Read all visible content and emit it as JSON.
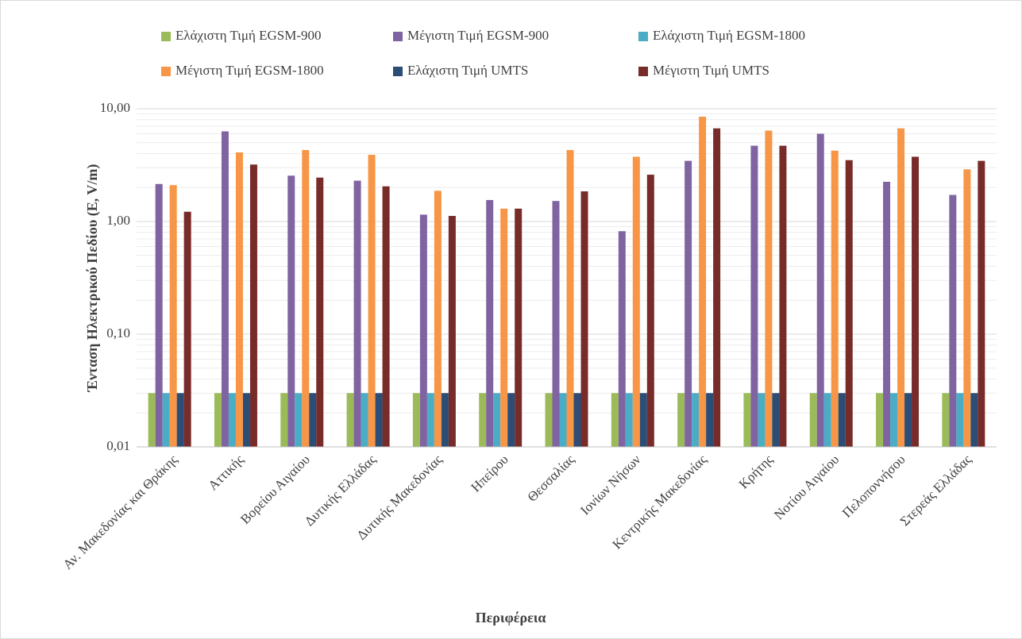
{
  "chart_data": {
    "type": "bar",
    "log_scale": true,
    "grid": true,
    "minor_grid": true,
    "x_label": "Περιφέρεια",
    "y_label": "Ένταση Ηλεκτρικού Πεδίου (E, V/m)",
    "categories": [
      "Αν. Μακεδονίας και Θράκης",
      "Αττικής",
      "Βορείου Αιγαίου",
      "Δυτικής Ελλάδας",
      "Δυτικής Μακεδονίας",
      "Ηπείρου",
      "Θεσσαλίας",
      "Ιονίων Νήσων",
      "Κεντρικής Μακεδονίας",
      "Κρήτης",
      "Νοτίου Αιγαίου",
      "Πελοποννήσου",
      "Στερεάς Ελλάδας"
    ],
    "series": [
      {
        "name": "Ελάχιστη Τιμή EGSM-900",
        "color": "#9bbb59",
        "values": [
          0.03,
          0.03,
          0.03,
          0.03,
          0.03,
          0.03,
          0.03,
          0.03,
          0.03,
          0.03,
          0.03,
          0.03,
          0.03
        ]
      },
      {
        "name": "Μέγιστη Τιμή EGSM-900",
        "color": "#8064a2",
        "values": [
          2.15,
          6.3,
          2.55,
          2.3,
          1.15,
          1.55,
          1.52,
          0.82,
          3.45,
          4.7,
          6.0,
          2.25,
          1.72
        ]
      },
      {
        "name": "Ελάχιστη Τιμή EGSM-1800",
        "color": "#4bacc6",
        "values": [
          0.03,
          0.03,
          0.03,
          0.03,
          0.03,
          0.03,
          0.03,
          0.03,
          0.03,
          0.03,
          0.03,
          0.03,
          0.03
        ]
      },
      {
        "name": "Μέγιστη Τιμή EGSM-1800",
        "color": "#f79646",
        "values": [
          2.1,
          4.1,
          4.3,
          3.9,
          1.87,
          1.3,
          4.3,
          3.75,
          8.5,
          6.4,
          4.25,
          6.7,
          2.9
        ]
      },
      {
        "name": "Ελάχιστη Τιμή UMTS",
        "color": "#2c4d75",
        "values": [
          0.03,
          0.03,
          0.03,
          0.03,
          0.03,
          0.03,
          0.03,
          0.03,
          0.03,
          0.03,
          0.03,
          0.03,
          0.03
        ]
      },
      {
        "name": "Μέγιστη Τιμή UMTS",
        "color": "#772c2a",
        "values": [
          1.22,
          3.2,
          2.45,
          2.05,
          1.12,
          1.3,
          1.85,
          2.6,
          6.7,
          4.7,
          3.5,
          3.75,
          3.45
        ]
      }
    ],
    "ylim": [
      0.01,
      10
    ],
    "yticks": [
      {
        "value": 0.01,
        "label": "0,01"
      },
      {
        "value": 0.1,
        "label": "0,10"
      },
      {
        "value": 1,
        "label": "1,00"
      },
      {
        "value": 10,
        "label": "10,00"
      }
    ],
    "legend_position": "top"
  }
}
